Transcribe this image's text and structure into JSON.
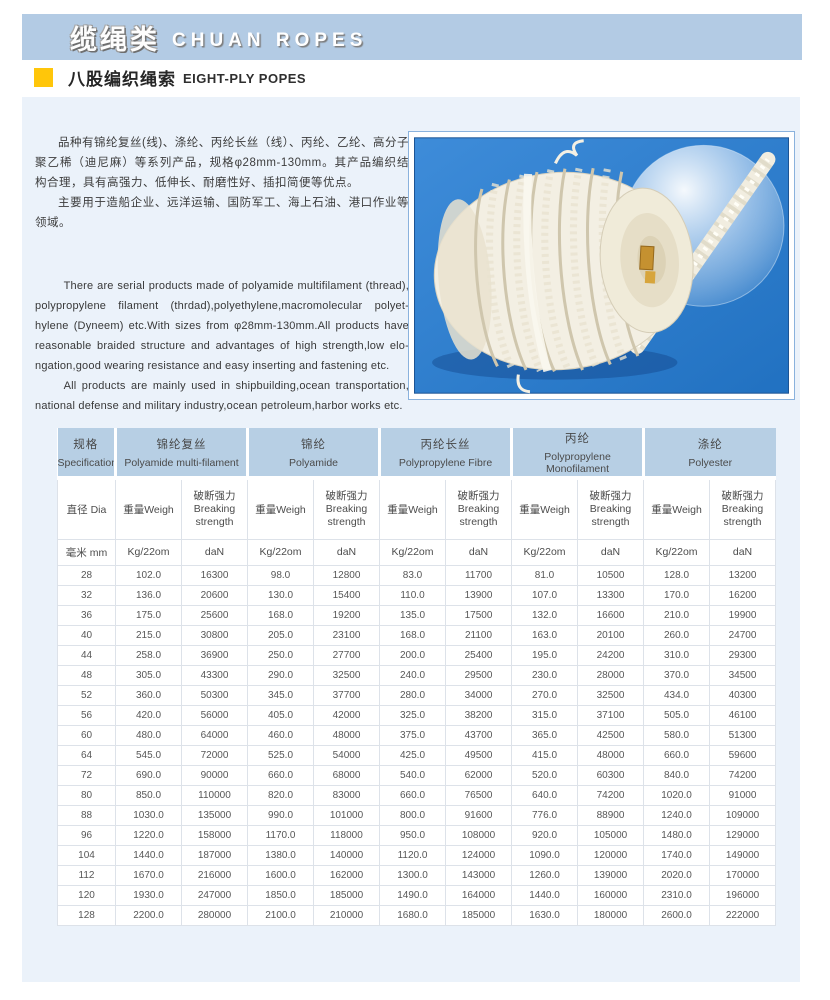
{
  "page": {
    "title_zh": "缆绳类",
    "title_en": "CHUAN ROPES",
    "section_zh": "八股编织绳索",
    "section_en": "EIGHT-PLY POPES"
  },
  "intro": {
    "zh_para1": "品种有锦纶复丝(线)、涤纶、丙纶长丝（线）、丙纶、乙纶、高分子聚乙稀（迪尼麻）等系列产品，规格φ28mm-130mm。其产品编织结构合理，具有高强力、低伸长、耐磨性好、插扣简便等优点。",
    "zh_para2": "主要用于造船企业、远洋运输、国防军工、海上石油、港口作业等领域。",
    "en_para1": "There are serial products made of polyamide multifilament (thread), polypropylene filament (thrdad),polyethylene,macromolecular polyet-hylene (Dyneem) etc.With sizes from φ28mm-130mm.All products have reasonable braided structure and advantages of high strength,low elo-ngation,good wearing resistance and easy inserting and fastening etc.",
    "en_para2": "All products are mainly used in shipbuilding,ocean transportation, national defense and military industry,ocean petroleum,harbor works etc."
  },
  "photo": {
    "description": "white eight-ply braided rope coil on blue background with highlight circle"
  },
  "colors": {
    "header_bar": "#b3cbe4",
    "bullet_yellow": "#ffc60a",
    "panel": "#ebf2fa",
    "table_header": "#b7cfe4",
    "photo_blue": "#2f7fd0"
  },
  "table": {
    "groups": [
      {
        "zh": "规格",
        "en": "Specification"
      },
      {
        "zh": "锦纶复丝",
        "en": "Polyamide multi-filament"
      },
      {
        "zh": "锦纶",
        "en": "Polyamide"
      },
      {
        "zh": "丙纶长丝",
        "en": "Polypropylene Fibre"
      },
      {
        "zh": "丙纶",
        "en": "Polypropylene Monofilament"
      },
      {
        "zh": "涤纶",
        "en": "Polyester"
      }
    ],
    "sub": {
      "dia": "直径 Dia",
      "weight": "重量Weigh",
      "strength_zh": "破断强力",
      "strength_en": "Breaking strength"
    },
    "units": {
      "dia": "毫米 mm",
      "weight": "Kg/22om",
      "strength": "daN"
    },
    "rows": [
      [
        "28",
        "102.0",
        "16300",
        "98.0",
        "12800",
        "83.0",
        "11700",
        "81.0",
        "10500",
        "128.0",
        "13200"
      ],
      [
        "32",
        "136.0",
        "20600",
        "130.0",
        "15400",
        "110.0",
        "13900",
        "107.0",
        "13300",
        "170.0",
        "16200"
      ],
      [
        "36",
        "175.0",
        "25600",
        "168.0",
        "19200",
        "135.0",
        "17500",
        "132.0",
        "16600",
        "210.0",
        "19900"
      ],
      [
        "40",
        "215.0",
        "30800",
        "205.0",
        "23100",
        "168.0",
        "21100",
        "163.0",
        "20100",
        "260.0",
        "24700"
      ],
      [
        "44",
        "258.0",
        "36900",
        "250.0",
        "27700",
        "200.0",
        "25400",
        "195.0",
        "24200",
        "310.0",
        "29300"
      ],
      [
        "48",
        "305.0",
        "43300",
        "290.0",
        "32500",
        "240.0",
        "29500",
        "230.0",
        "28000",
        "370.0",
        "34500"
      ],
      [
        "52",
        "360.0",
        "50300",
        "345.0",
        "37700",
        "280.0",
        "34000",
        "270.0",
        "32500",
        "434.0",
        "40300"
      ],
      [
        "56",
        "420.0",
        "56000",
        "405.0",
        "42000",
        "325.0",
        "38200",
        "315.0",
        "37100",
        "505.0",
        "46100"
      ],
      [
        "60",
        "480.0",
        "64000",
        "460.0",
        "48000",
        "375.0",
        "43700",
        "365.0",
        "42500",
        "580.0",
        "51300"
      ],
      [
        "64",
        "545.0",
        "72000",
        "525.0",
        "54000",
        "425.0",
        "49500",
        "415.0",
        "48000",
        "660.0",
        "59600"
      ],
      [
        "72",
        "690.0",
        "90000",
        "660.0",
        "68000",
        "540.0",
        "62000",
        "520.0",
        "60300",
        "840.0",
        "74200"
      ],
      [
        "80",
        "850.0",
        "110000",
        "820.0",
        "83000",
        "660.0",
        "76500",
        "640.0",
        "74200",
        "1020.0",
        "91000"
      ],
      [
        "88",
        "1030.0",
        "135000",
        "990.0",
        "101000",
        "800.0",
        "91600",
        "776.0",
        "88900",
        "1240.0",
        "109000"
      ],
      [
        "96",
        "1220.0",
        "158000",
        "1170.0",
        "118000",
        "950.0",
        "108000",
        "920.0",
        "105000",
        "1480.0",
        "129000"
      ],
      [
        "104",
        "1440.0",
        "187000",
        "1380.0",
        "140000",
        "1120.0",
        "124000",
        "1090.0",
        "120000",
        "1740.0",
        "149000"
      ],
      [
        "112",
        "1670.0",
        "216000",
        "1600.0",
        "162000",
        "1300.0",
        "143000",
        "1260.0",
        "139000",
        "2020.0",
        "170000"
      ],
      [
        "120",
        "1930.0",
        "247000",
        "1850.0",
        "185000",
        "1490.0",
        "164000",
        "1440.0",
        "160000",
        "2310.0",
        "196000"
      ],
      [
        "128",
        "2200.0",
        "280000",
        "2100.0",
        "210000",
        "1680.0",
        "185000",
        "1630.0",
        "180000",
        "2600.0",
        "222000"
      ]
    ]
  }
}
